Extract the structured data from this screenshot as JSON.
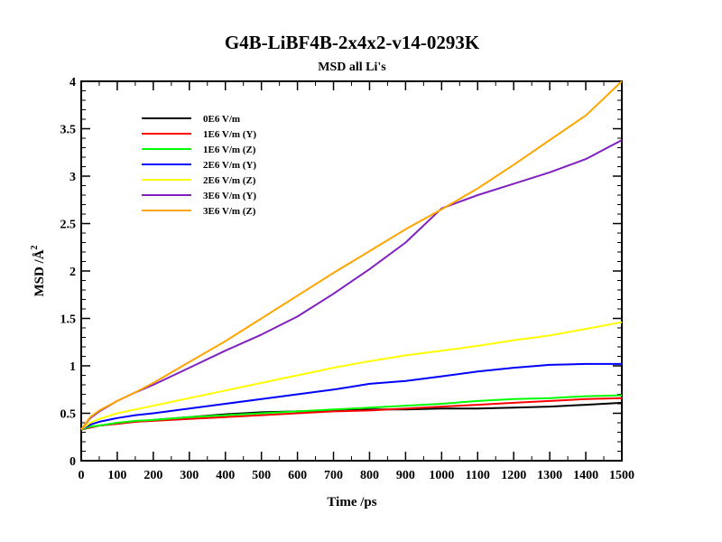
{
  "chart_data": {
    "type": "line",
    "title": "G4B-LiBF4B-2x4x2-v14-0293K",
    "subtitle": "MSD all Li's",
    "xlabel": "Time /ps",
    "ylabel_main": "MSD /",
    "ylabel_unit": "Å",
    "ylabel_exp": "2",
    "xlim": [
      0,
      1500
    ],
    "ylim": [
      0,
      4
    ],
    "x_ticks": [
      0,
      100,
      200,
      300,
      400,
      500,
      600,
      700,
      800,
      900,
      1000,
      1100,
      1200,
      1300,
      1400,
      1500
    ],
    "y_ticks": [
      0,
      0.5,
      1,
      1.5,
      2,
      2.5,
      3,
      3.5,
      4
    ],
    "x_tick_labels": [
      "0",
      "100",
      "200",
      "300",
      "400",
      "500",
      "600",
      "700",
      "800",
      "900",
      "1000",
      "1100",
      "1200",
      "1300",
      "1400",
      "1500"
    ],
    "y_tick_labels": [
      "0",
      "0.5",
      "1",
      "1.5",
      "2",
      "2.5",
      "3",
      "3.5",
      "4"
    ],
    "grid": false,
    "legend_position": "top-left",
    "x": [
      0,
      25,
      50,
      100,
      150,
      200,
      300,
      400,
      500,
      600,
      700,
      800,
      900,
      1000,
      1100,
      1200,
      1300,
      1400,
      1500
    ],
    "series": [
      {
        "name": "0E6 V/m",
        "color": "#000000",
        "values": [
          0.33,
          0.35,
          0.37,
          0.39,
          0.41,
          0.43,
          0.46,
          0.49,
          0.51,
          0.52,
          0.53,
          0.54,
          0.54,
          0.55,
          0.55,
          0.56,
          0.57,
          0.59,
          0.61
        ]
      },
      {
        "name": "1E6 V/m (Y)",
        "color": "#ff0000",
        "values": [
          0.33,
          0.35,
          0.37,
          0.39,
          0.41,
          0.42,
          0.44,
          0.46,
          0.48,
          0.5,
          0.52,
          0.53,
          0.55,
          0.57,
          0.59,
          0.61,
          0.63,
          0.65,
          0.66
        ]
      },
      {
        "name": "1E6 V/m (Z)",
        "color": "#00ff00",
        "values": [
          0.33,
          0.36,
          0.37,
          0.4,
          0.42,
          0.43,
          0.46,
          0.48,
          0.5,
          0.52,
          0.54,
          0.56,
          0.58,
          0.6,
          0.63,
          0.65,
          0.66,
          0.68,
          0.69
        ]
      },
      {
        "name": "2E6 V/m (Y)",
        "color": "#0000ff",
        "values": [
          0.33,
          0.38,
          0.41,
          0.45,
          0.48,
          0.5,
          0.55,
          0.6,
          0.65,
          0.7,
          0.75,
          0.81,
          0.84,
          0.89,
          0.94,
          0.98,
          1.01,
          1.02,
          1.02
        ]
      },
      {
        "name": "2E6 V/m (Z)",
        "color": "#ffff00",
        "values": [
          0.33,
          0.4,
          0.44,
          0.5,
          0.54,
          0.58,
          0.66,
          0.74,
          0.82,
          0.9,
          0.98,
          1.05,
          1.11,
          1.16,
          1.21,
          1.27,
          1.32,
          1.39,
          1.46
        ]
      },
      {
        "name": "3E6 V/m (Y)",
        "color": "#8020c0",
        "values": [
          0.33,
          0.45,
          0.52,
          0.63,
          0.72,
          0.8,
          0.98,
          1.16,
          1.33,
          1.52,
          1.76,
          2.02,
          2.3,
          2.66,
          2.8,
          2.92,
          3.04,
          3.18,
          3.38
        ]
      },
      {
        "name": "3E6 V/m (Z)",
        "color": "#ffa500",
        "values": [
          0.33,
          0.46,
          0.53,
          0.63,
          0.72,
          0.82,
          1.04,
          1.26,
          1.5,
          1.74,
          1.98,
          2.21,
          2.44,
          2.65,
          2.87,
          3.12,
          3.38,
          3.64,
          4.0
        ]
      }
    ]
  }
}
